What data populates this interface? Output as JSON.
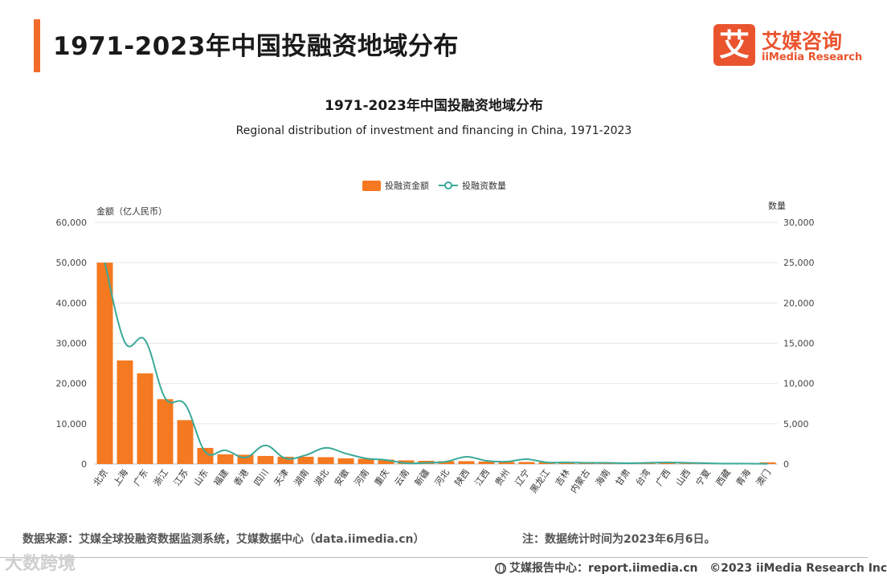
{
  "header": {
    "title": "1971-2023年中国投融资地域分布"
  },
  "brand": {
    "mark": "艾",
    "name_cn": "艾媒咨询",
    "name_en": "iiMedia Research",
    "color": "#e9542e"
  },
  "chart_data": {
    "type": "bar",
    "title": "1971-2023年中国投融资地域分布",
    "subtitle": "Regional distribution of investment and financing in China, 1971-2023",
    "categories": [
      "北京",
      "上海",
      "广东",
      "浙江",
      "江苏",
      "山东",
      "福建",
      "香港",
      "四川",
      "天津",
      "湖南",
      "湖北",
      "安徽",
      "河南",
      "重庆",
      "云南",
      "新疆",
      "河北",
      "陕西",
      "江西",
      "贵州",
      "辽宁",
      "黑龙江",
      "吉林",
      "内蒙古",
      "海南",
      "甘肃",
      "台湾",
      "广西",
      "山西",
      "宁夏",
      "西藏",
      "青海",
      "澳门"
    ],
    "series": [
      {
        "name": "投融资金额",
        "type": "bar",
        "axis": "left",
        "color": "#f47920",
        "values": [
          50000,
          25700,
          22500,
          16100,
          10900,
          4000,
          2400,
          2300,
          2000,
          1800,
          1800,
          1700,
          1400,
          1300,
          1100,
          900,
          800,
          700,
          700,
          600,
          500,
          500,
          400,
          300,
          300,
          300,
          200,
          200,
          200,
          150,
          100,
          100,
          100,
          400
        ]
      },
      {
        "name": "投融资数量",
        "type": "line",
        "axis": "right",
        "color": "#3aaa98",
        "values": [
          25000,
          15100,
          15400,
          8200,
          7400,
          1500,
          1700,
          800,
          2300,
          700,
          1100,
          2000,
          1300,
          700,
          500,
          100,
          150,
          300,
          900,
          400,
          300,
          600,
          200,
          200,
          150,
          150,
          100,
          150,
          200,
          150,
          100,
          50,
          50,
          20
        ]
      }
    ],
    "y_left": {
      "label": "金额（亿人民币）",
      "min": 0,
      "max": 60000,
      "ticks": [
        "0",
        "10,000",
        "20,000",
        "30,000",
        "40,000",
        "50,000",
        "60,000"
      ]
    },
    "y_right": {
      "label": "数量",
      "min": 0,
      "max": 30000,
      "ticks": [
        "0",
        "5,000",
        "10,000",
        "15,000",
        "20,000",
        "25,000",
        "30,000"
      ]
    },
    "grid": true,
    "legend": "top-center"
  },
  "footer": {
    "source": "数据来源：艾媒全球投融资数据监测系统，艾媒数据中心（data.iimedia.cn）",
    "note": "注：数据统计时间为2023年6月6日。",
    "center": "艾媒报告中心：report.iimedia.cn",
    "copyright": "©2023  iiMedia Research  Inc",
    "watermark": "大数跨境"
  }
}
